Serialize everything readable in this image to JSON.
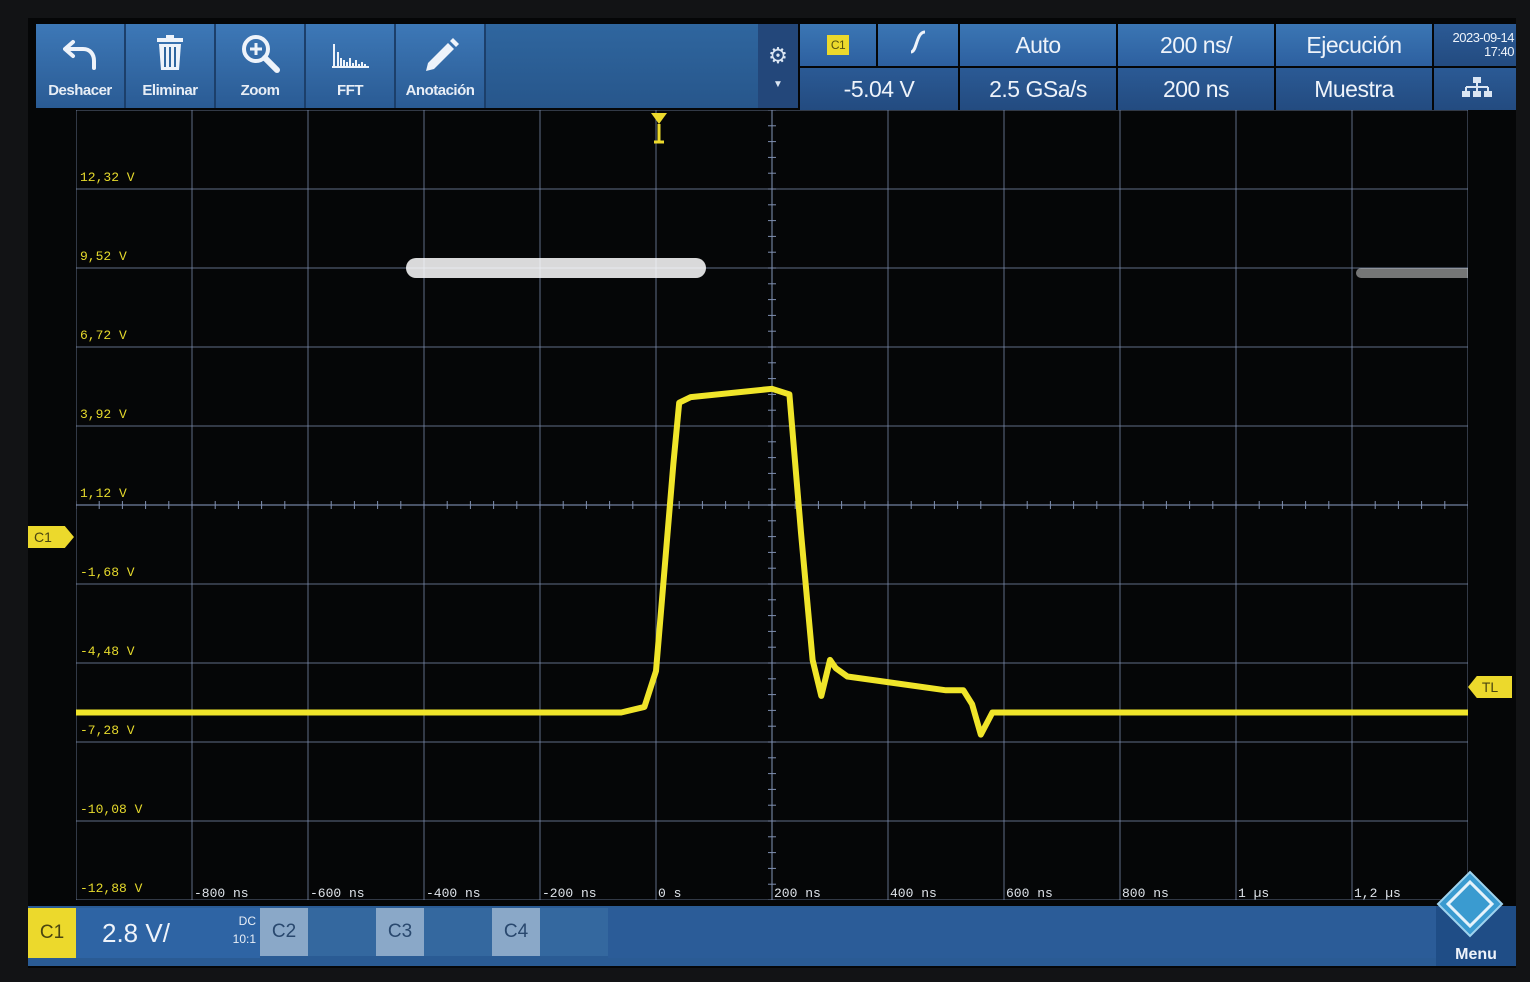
{
  "toolbar": {
    "buttons": [
      {
        "label": "Deshacer",
        "icon": "undo-icon"
      },
      {
        "label": "Eliminar",
        "icon": "trash-icon"
      },
      {
        "label": "Zoom",
        "icon": "zoom-icon"
      },
      {
        "label": "FFT",
        "icon": "fft-icon"
      },
      {
        "label": "Anotación",
        "icon": "pencil-icon"
      }
    ]
  },
  "status": {
    "trigger_source": "C1",
    "trigger_level": "-5.04 V",
    "trigger_mode": "Auto",
    "sample_rate": "2.5 GSa/s",
    "timebase": "200 ns/",
    "horizontal_position": "200 ns",
    "run_state": "Ejecución",
    "acquisition_mode": "Muestra",
    "date": "2023-09-14",
    "time": "17:40"
  },
  "markers": {
    "channel": "C1",
    "trigger_level": "TL"
  },
  "bottom": {
    "channel": "C1",
    "scale": "2.8 V/",
    "coupling": "DC",
    "probe": "10:1",
    "other_channels": [
      "C2",
      "C3",
      "C4"
    ],
    "menu": "Menu"
  },
  "colors": {
    "trace": "#f0e52a",
    "grid": "#7e8fb0",
    "panel": "#2d60a0"
  },
  "chart_data": {
    "type": "line",
    "y_tick_labels": [
      "12,32 V",
      "9,52 V",
      "6,72 V",
      "3,92 V",
      "1,12 V",
      "-1,68 V",
      "-4,48 V",
      "-7,28 V",
      "-10,08 V",
      "-12,88 V"
    ],
    "x_tick_labels": [
      "-800 ns",
      "-600 ns",
      "-400 ns",
      "-200 ns",
      "0 s",
      "200 ns",
      "400 ns",
      "600 ns",
      "800 ns",
      "1 µs",
      "1,2 µs"
    ],
    "xlim_ns": [
      -1000,
      1400
    ],
    "ylim_v": [
      -14.28,
      14.28
    ],
    "x_ns": [
      -1000,
      -200,
      -60,
      -20,
      0,
      30,
      40,
      60,
      200,
      230,
      250,
      270,
      285,
      300,
      310,
      330,
      500,
      530,
      545,
      560,
      580,
      600,
      1000,
      1400
    ],
    "y_v": [
      -7.5,
      -7.5,
      -7.5,
      -7.3,
      -6.0,
      1.5,
      3.7,
      3.9,
      4.2,
      4.0,
      -1.0,
      -5.6,
      -6.9,
      -5.6,
      -5.9,
      -6.2,
      -6.7,
      -6.7,
      -7.2,
      -8.3,
      -7.5,
      -7.5,
      -7.5,
      -7.5
    ],
    "grid": true
  }
}
